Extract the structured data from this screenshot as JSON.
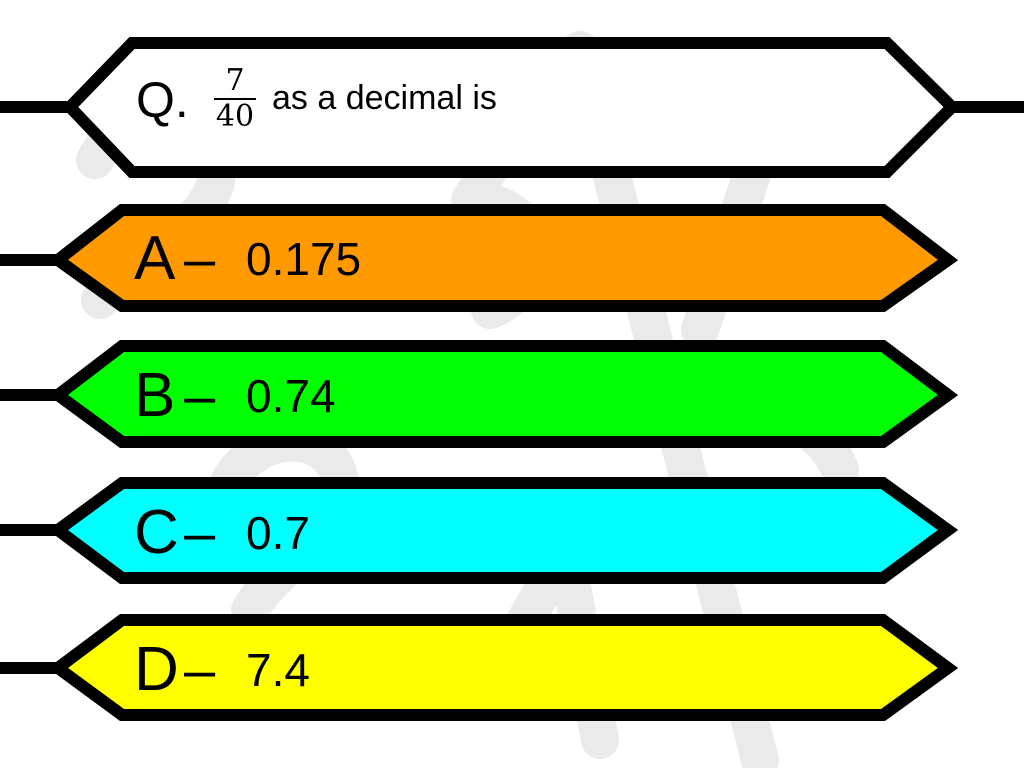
{
  "question": {
    "prefix": "Q.",
    "fraction_numerator": "7",
    "fraction_denominator": "40",
    "text": "as a decimal is"
  },
  "options": [
    {
      "letter": "A",
      "dash": "–",
      "value": "0.175",
      "color": "#ff9900"
    },
    {
      "letter": "B",
      "dash": "–",
      "value": "0.74",
      "color": "#00ff00"
    },
    {
      "letter": "C",
      "dash": "–",
      "value": "0.7",
      "color": "#00ffff"
    },
    {
      "letter": "D",
      "dash": "–",
      "value": "7.4",
      "color": "#ffff00"
    }
  ],
  "colors": {
    "question_fill": "#ffffff",
    "outline": "#000000",
    "watermark": "#e6e6e6"
  }
}
